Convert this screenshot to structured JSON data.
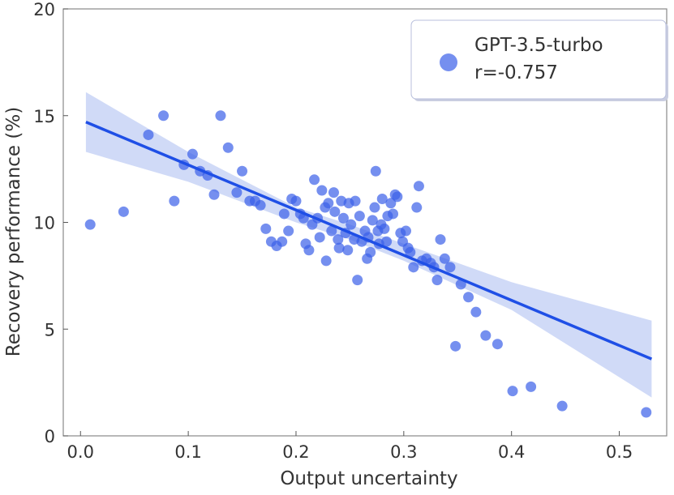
{
  "chart_data": {
    "type": "scatter",
    "xlabel": "Output uncertainty",
    "ylabel": "Recovery performance (%)",
    "xlim": [
      -0.016,
      0.544
    ],
    "ylim": [
      0,
      20
    ],
    "xticks": [
      {
        "value": 0,
        "label": "0.0"
      },
      0.1,
      0.2,
      0.3,
      0.4,
      0.5
    ],
    "yticks": [
      0,
      5,
      10,
      15,
      20
    ],
    "legend_position": "upper right",
    "annotation": "r=-0.757",
    "series": [
      {
        "name": "GPT-3.5-turbo",
        "color": "#3b5fe8",
        "x": [
          0.009,
          0.04,
          0.063,
          0.077,
          0.087,
          0.096,
          0.104,
          0.111,
          0.118,
          0.124,
          0.13,
          0.137,
          0.145,
          0.15,
          0.157,
          0.162,
          0.167,
          0.172,
          0.177,
          0.182,
          0.187,
          0.189,
          0.193,
          0.196,
          0.2,
          0.204,
          0.207,
          0.209,
          0.212,
          0.215,
          0.217,
          0.22,
          0.222,
          0.224,
          0.227,
          0.228,
          0.23,
          0.233,
          0.235,
          0.236,
          0.239,
          0.24,
          0.242,
          0.244,
          0.246,
          0.248,
          0.249,
          0.251,
          0.254,
          0.255,
          0.257,
          0.259,
          0.261,
          0.264,
          0.266,
          0.267,
          0.269,
          0.271,
          0.273,
          0.274,
          0.276,
          0.277,
          0.279,
          0.28,
          0.282,
          0.284,
          0.285,
          0.288,
          0.29,
          0.292,
          0.294,
          0.297,
          0.299,
          0.302,
          0.304,
          0.306,
          0.309,
          0.312,
          0.314,
          0.317,
          0.321,
          0.325,
          0.328,
          0.331,
          0.334,
          0.338,
          0.343,
          0.348,
          0.353,
          0.36,
          0.367,
          0.376,
          0.387,
          0.401,
          0.418,
          0.447,
          0.525
        ],
        "values": [
          9.9,
          10.5,
          14.1,
          15.0,
          11.0,
          12.7,
          13.2,
          12.4,
          12.2,
          11.3,
          15.0,
          13.5,
          11.4,
          12.4,
          11.0,
          11.0,
          10.8,
          9.7,
          9.1,
          8.9,
          9.1,
          10.4,
          9.6,
          11.1,
          11.0,
          10.4,
          10.2,
          9.0,
          8.7,
          9.9,
          12.0,
          10.2,
          9.3,
          11.5,
          10.7,
          8.2,
          10.9,
          9.6,
          11.4,
          10.5,
          9.2,
          8.8,
          11.0,
          10.2,
          9.5,
          8.7,
          10.9,
          9.9,
          9.2,
          11.0,
          7.3,
          10.3,
          9.1,
          9.6,
          8.3,
          9.3,
          8.6,
          10.1,
          10.7,
          12.4,
          9.6,
          9.0,
          9.9,
          11.1,
          9.7,
          9.1,
          10.3,
          10.9,
          10.4,
          11.3,
          11.2,
          9.5,
          9.1,
          9.6,
          8.8,
          8.6,
          7.9,
          10.7,
          11.7,
          8.2,
          8.3,
          8.1,
          7.9,
          7.3,
          9.2,
          8.3,
          7.9,
          4.2,
          7.1,
          6.5,
          5.8,
          4.7,
          4.3,
          2.1,
          2.3,
          1.4,
          1.1
        ]
      }
    ],
    "fit": {
      "color": "#1f4fe6",
      "band_color": "#c8d3f6",
      "x": [
        0.005,
        0.53
      ],
      "y": [
        14.7,
        3.6
      ],
      "band_x": [
        0.005,
        0.1,
        0.2,
        0.25,
        0.3,
        0.4,
        0.53
      ],
      "band_lower": [
        13.3,
        11.9,
        10.0,
        9.2,
        8.2,
        5.9,
        1.8
      ],
      "band_upper": [
        16.1,
        13.3,
        10.7,
        9.9,
        9.0,
        7.2,
        5.4
      ]
    }
  }
}
